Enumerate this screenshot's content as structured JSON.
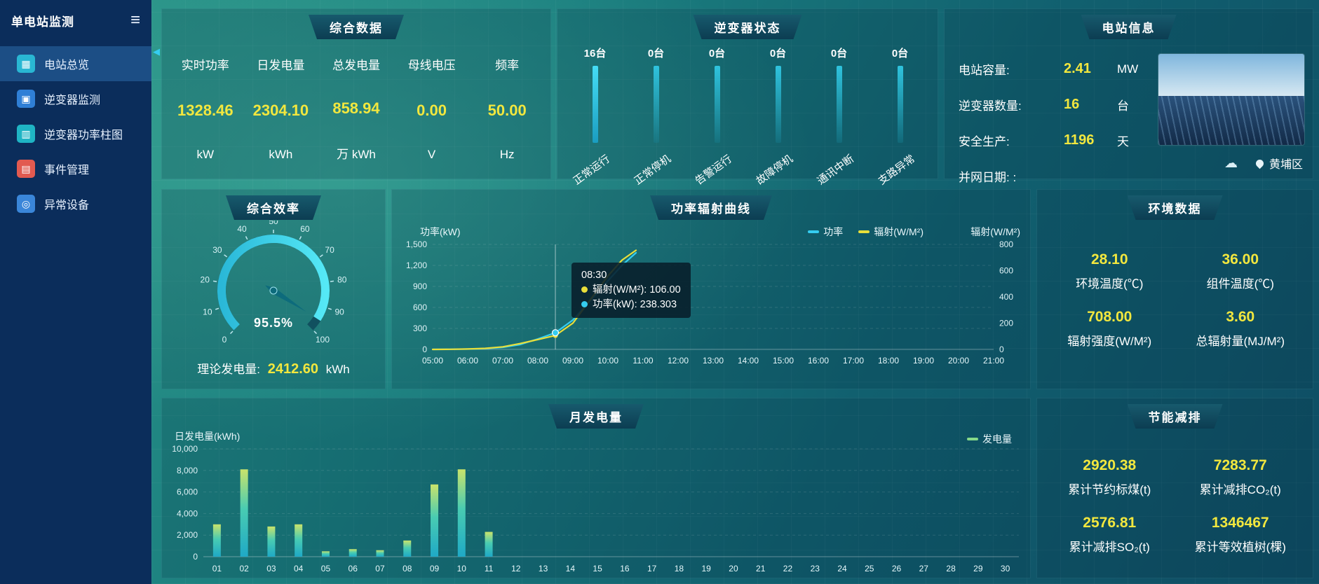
{
  "sidebar": {
    "title": "单电站监测",
    "items": [
      {
        "label": "电站总览",
        "active": true
      },
      {
        "label": "逆变器监测",
        "active": false
      },
      {
        "label": "逆变器功率柱图",
        "active": false
      },
      {
        "label": "事件管理",
        "active": false
      },
      {
        "label": "异常设备",
        "active": false
      }
    ]
  },
  "colors": {
    "accent_yellow": "#f2e73e",
    "accent_cyan": "#35cdf0",
    "sidebar_bg": "#0b2d5b",
    "panel_header": "#0c3d52"
  },
  "panels": {
    "summary": {
      "title": "综合数据",
      "metrics": [
        {
          "label": "实时功率",
          "value": "1328.46",
          "unit": "kW"
        },
        {
          "label": "日发电量",
          "value": "2304.10",
          "unit": "kWh"
        },
        {
          "label": "总发电量",
          "value": "858.94",
          "unit": "万 kWh"
        },
        {
          "label": "母线电压",
          "value": "0.00",
          "unit": "V"
        },
        {
          "label": "频率",
          "value": "50.00",
          "unit": "Hz"
        }
      ]
    },
    "inverter_status": {
      "title": "逆变器状态",
      "items": [
        {
          "count": "16台",
          "label": "正常运行"
        },
        {
          "count": "0台",
          "label": "正常停机"
        },
        {
          "count": "0台",
          "label": "告警运行"
        },
        {
          "count": "0台",
          "label": "故障停机"
        },
        {
          "count": "0台",
          "label": "通讯中断"
        },
        {
          "count": "0台",
          "label": "支路异常"
        }
      ]
    },
    "station_info": {
      "title": "电站信息",
      "rows": [
        {
          "label": "电站容量:",
          "value": "2.41",
          "unit": "MW"
        },
        {
          "label": "逆变器数量:",
          "value": "16",
          "unit": "台"
        },
        {
          "label": "安全生产:",
          "value": "1196",
          "unit": "天"
        },
        {
          "label": "并网日期:  :",
          "value": "",
          "unit": ""
        }
      ],
      "location": "黄埔区"
    },
    "efficiency": {
      "title": "综合效率",
      "theory_label": "理论发电量:",
      "theory_value": "2412.60",
      "theory_unit": "kWh"
    },
    "power_curve": {
      "title": "功率辐射曲线",
      "tooltip": {
        "time": "08:30",
        "radiation_line": "辐射(W/M²): 106.00",
        "power_line": "功率(kW): 238.303"
      }
    },
    "environment": {
      "title": "环境数据",
      "metrics": [
        {
          "value": "28.10",
          "label": "环境温度(℃)"
        },
        {
          "value": "36.00",
          "label": "组件温度(℃)"
        },
        {
          "value": "708.00",
          "label": "辐射强度(W/M²)"
        },
        {
          "value": "3.60",
          "label": "总辐射量(MJ/M²)"
        }
      ]
    },
    "monthly": {
      "title": "月发电量"
    },
    "savings": {
      "title": "节能减排",
      "metrics": [
        {
          "value": "2920.38",
          "label": "累计节约标煤(t)"
        },
        {
          "value": "7283.77",
          "label": "累计减排CO₂(t)"
        },
        {
          "value": "2576.81",
          "label": "累计减排SO₂(t)"
        },
        {
          "value": "1346467",
          "label": "累计等效植树(棵)"
        }
      ]
    }
  },
  "chart_data": [
    {
      "type": "gauge",
      "title": "综合效率",
      "min": 0,
      "max": 100,
      "tick_step": 10,
      "value": 95.5,
      "label": "95.5%",
      "color": "#3fd4ea"
    },
    {
      "type": "line",
      "title": "功率辐射曲线",
      "xmin": 5,
      "xmax": 21,
      "x_tick_labels": [
        "05:00",
        "06:00",
        "07:00",
        "08:00",
        "09:00",
        "10:00",
        "11:00",
        "12:00",
        "13:00",
        "14:00",
        "15:00",
        "16:00",
        "17:00",
        "18:00",
        "19:00",
        "20:00",
        "21:00"
      ],
      "ylabel_left": "功率(kW)",
      "ylabel_right": "辐射(W/M²)",
      "ylim_left": [
        0,
        1500
      ],
      "ylim_right": [
        0,
        800
      ],
      "y_tick_step_left": 300,
      "y_tick_step_right": 200,
      "legend_position": "top-right",
      "series": [
        {
          "name": "功率",
          "axis": "left",
          "color": "#35cdf0",
          "points": [
            [
              5,
              0
            ],
            [
              5.5,
              2
            ],
            [
              6,
              5
            ],
            [
              6.5,
              12
            ],
            [
              7,
              30
            ],
            [
              7.5,
              70
            ],
            [
              8,
              150
            ],
            [
              8.5,
              238.3
            ],
            [
              9,
              420
            ],
            [
              9.5,
              700
            ],
            [
              10,
              980
            ],
            [
              10.4,
              1200
            ],
            [
              10.8,
              1380
            ]
          ]
        },
        {
          "name": "辐射(W/M²)",
          "axis": "right",
          "color": "#e9df3a",
          "points": [
            [
              5,
              0
            ],
            [
              5.5,
              1
            ],
            [
              6,
              3
            ],
            [
              6.5,
              8
            ],
            [
              7,
              20
            ],
            [
              7.5,
              45
            ],
            [
              8,
              75
            ],
            [
              8.5,
              106
            ],
            [
              9,
              200
            ],
            [
              9.5,
              380
            ],
            [
              10,
              560
            ],
            [
              10.4,
              680
            ],
            [
              10.8,
              755
            ]
          ]
        }
      ],
      "hover": {
        "x": 8.5,
        "label": "08:30",
        "power": 238.303,
        "radiation": 106.0
      }
    },
    {
      "type": "bar",
      "title": "月发电量",
      "ylabel": "日发电量(kWh)",
      "ylim": [
        0,
        10000
      ],
      "y_tick_step": 2000,
      "legend_position": "top-right",
      "categories": [
        "01",
        "02",
        "03",
        "04",
        "05",
        "06",
        "07",
        "08",
        "09",
        "10",
        "11",
        "12",
        "13",
        "14",
        "15",
        "16",
        "17",
        "18",
        "19",
        "20",
        "21",
        "22",
        "23",
        "24",
        "25",
        "26",
        "27",
        "28",
        "29",
        "30"
      ],
      "series": [
        {
          "name": "发电量",
          "color": "#86d989",
          "values": [
            3000,
            8100,
            2800,
            3000,
            500,
            700,
            600,
            1500,
            6700,
            8100,
            2300,
            0,
            0,
            0,
            0,
            0,
            0,
            0,
            0,
            0,
            0,
            0,
            0,
            0,
            0,
            0,
            0,
            0,
            0,
            0
          ]
        }
      ]
    }
  ]
}
